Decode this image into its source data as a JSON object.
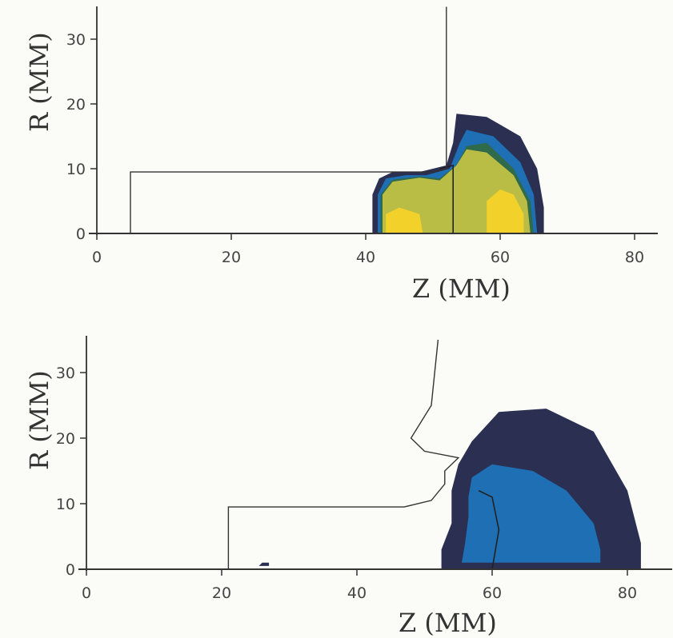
{
  "chart_data": [
    {
      "type": "contour",
      "xlabel": "Z (MM)",
      "ylabel": "R (MM)",
      "xlim": [
        0,
        85
      ],
      "ylim": [
        0,
        35
      ],
      "xticks": [
        "0",
        "20",
        "40",
        "60",
        "80"
      ],
      "yticks": [
        "0",
        "10",
        "20",
        "30"
      ],
      "outline": [
        [
          5,
          0
        ],
        [
          5,
          9.5
        ],
        [
          50,
          9.5
        ],
        [
          52,
          10
        ],
        [
          52,
          35
        ]
      ],
      "regions": [
        {
          "color": "#2b2f52",
          "points": [
            [
              41,
              0
            ],
            [
              41,
              6
            ],
            [
              42,
              8.5
            ],
            [
              44,
              9.5
            ],
            [
              48,
              9.5
            ],
            [
              52,
              10.5
            ],
            [
              53,
              14
            ],
            [
              53.5,
              18.5
            ],
            [
              58,
              18
            ],
            [
              63,
              15
            ],
            [
              65.5,
              10
            ],
            [
              66.5,
              4
            ],
            [
              66.5,
              0
            ]
          ]
        },
        {
          "color": "#1f6fb4",
          "points": [
            [
              41.8,
              0
            ],
            [
              41.8,
              6
            ],
            [
              43,
              8.5
            ],
            [
              46,
              9
            ],
            [
              49,
              9
            ],
            [
              52.5,
              10
            ],
            [
              54,
              14
            ],
            [
              55,
              16
            ],
            [
              59,
              15
            ],
            [
              63,
              11
            ],
            [
              65,
              6
            ],
            [
              65.5,
              0
            ]
          ]
        },
        {
          "color": "#2f6a4a",
          "points": [
            [
              42.2,
              0
            ],
            [
              42.2,
              6
            ],
            [
              44,
              8.3
            ],
            [
              48,
              8.8
            ],
            [
              51,
              8.5
            ],
            [
              53.5,
              10.5
            ],
            [
              55,
              13.5
            ],
            [
              58,
              14
            ],
            [
              62,
              10
            ],
            [
              64.5,
              5
            ],
            [
              65,
              0
            ]
          ]
        },
        {
          "color": "#b9bd45",
          "points": [
            [
              42.5,
              0
            ],
            [
              42.5,
              6
            ],
            [
              44,
              8
            ],
            [
              48,
              8.6
            ],
            [
              51,
              8.2
            ],
            [
              53.5,
              10.5
            ],
            [
              55,
              13
            ],
            [
              58,
              12.5
            ],
            [
              62,
              9
            ],
            [
              64,
              5
            ],
            [
              64.5,
              0
            ]
          ]
        },
        {
          "color": "#f2d22a",
          "points": [
            [
              43,
              0
            ],
            [
              43,
              3
            ],
            [
              45,
              4
            ],
            [
              48,
              3
            ],
            [
              48.5,
              0
            ]
          ]
        },
        {
          "color": "#f2d22a",
          "points": [
            [
              58,
              0
            ],
            [
              58,
              5
            ],
            [
              60,
              6.8
            ],
            [
              62,
              6
            ],
            [
              63.5,
              3
            ],
            [
              63.5,
              0
            ]
          ]
        }
      ],
      "inner_curve": [
        [
          51,
          10
        ],
        [
          53,
          10.5
        ],
        [
          53,
          0
        ]
      ]
    },
    {
      "type": "contour",
      "xlabel": "Z (MM)",
      "ylabel": "R (MM)",
      "xlim": [
        0,
        88
      ],
      "ylim": [
        0,
        35
      ],
      "xticks": [
        "0",
        "20",
        "40",
        "60",
        "80"
      ],
      "yticks": [
        "0",
        "10",
        "20",
        "30"
      ],
      "outline": [
        [
          21,
          0
        ],
        [
          21,
          9.5
        ],
        [
          47,
          9.5
        ],
        [
          51,
          10.5
        ],
        [
          53,
          13
        ],
        [
          53,
          15
        ],
        [
          55,
          17
        ],
        [
          50,
          18
        ],
        [
          48,
          20
        ],
        [
          51,
          25
        ],
        [
          52,
          35
        ]
      ],
      "regions": [
        {
          "color": "#2b2f52",
          "points": [
            [
              52.5,
              0
            ],
            [
              52.5,
              3
            ],
            [
              54,
              7
            ],
            [
              54,
              12
            ],
            [
              55,
              16
            ],
            [
              57,
              19.5
            ],
            [
              61,
              24
            ],
            [
              68,
              24.5
            ],
            [
              75,
              21
            ],
            [
              80,
              12
            ],
            [
              82,
              4
            ],
            [
              82,
              0
            ]
          ]
        },
        {
          "color": "#1f6fb4",
          "points": [
            [
              55.5,
              1
            ],
            [
              56,
              4
            ],
            [
              56.5,
              8
            ],
            [
              56.5,
              11
            ],
            [
              57,
              14
            ],
            [
              60,
              16
            ],
            [
              66,
              15
            ],
            [
              71,
              12
            ],
            [
              75,
              7
            ],
            [
              76,
              3
            ],
            [
              76,
              1
            ]
          ]
        },
        {
          "color": "#2b2f52",
          "points": [
            [
              25.5,
              0.5
            ],
            [
              26,
              1
            ],
            [
              27,
              1
            ],
            [
              27,
              0.5
            ]
          ]
        }
      ],
      "inner_curve": [
        [
          58,
          12
        ],
        [
          60,
          11
        ],
        [
          61,
          6
        ],
        [
          60,
          0
        ]
      ]
    }
  ]
}
